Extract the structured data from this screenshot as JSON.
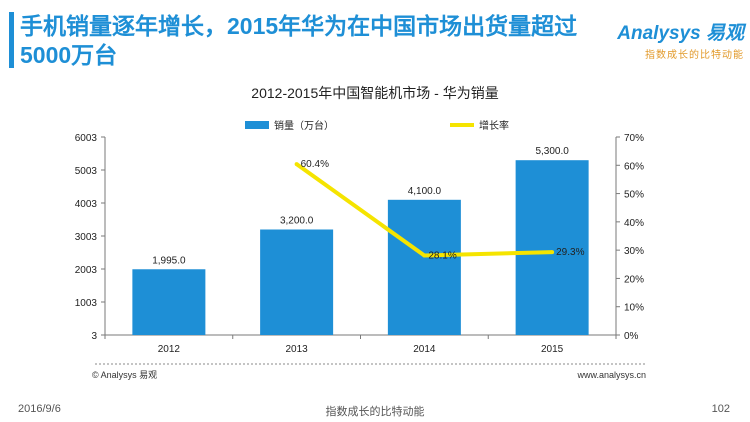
{
  "slide": {
    "headline": "手机销量逐年增长，2015年华为在中国市场出货量超过5000万台",
    "brand_logo": "Analysys 易观",
    "brand_tagline": "指数成长的比特动能",
    "footer_date": "2016/9/6",
    "footer_center": "指数成长的比特动能",
    "page_number": "102",
    "chart_source": "© Analysys 易观",
    "chart_url": "www.analysys.cn"
  },
  "colors": {
    "accent": "#1e8fd6",
    "bar": "#1e8fd6",
    "line": "#f5e400"
  },
  "chart_data": {
    "type": "bar",
    "title": "2012-2015年中国智能机市场 - 华为销量",
    "categories": [
      "2012",
      "2013",
      "2014",
      "2015"
    ],
    "series": [
      {
        "name": "销量（万台）",
        "kind": "bar",
        "axis": "left",
        "values": [
          1995.0,
          3200.0,
          4100.0,
          5300.0
        ],
        "labels": [
          "1,995.0",
          "3,200.0",
          "4,100.0",
          "5,300.0"
        ]
      },
      {
        "name": "增长率",
        "kind": "line",
        "axis": "right",
        "values": [
          null,
          60.4,
          28.1,
          29.3
        ],
        "labels": [
          "",
          "60.4%",
          "28.1%",
          "29.3%"
        ]
      }
    ],
    "y_left": {
      "ylim": [
        3,
        6003
      ],
      "ticks": [
        "3",
        "1003",
        "2003",
        "3003",
        "4003",
        "5003",
        "6003"
      ]
    },
    "y_right": {
      "ylim": [
        0,
        70
      ],
      "ticks": [
        "0%",
        "10%",
        "20%",
        "30%",
        "40%",
        "50%",
        "60%",
        "70%"
      ]
    },
    "legend_position": "top",
    "grid": false
  }
}
